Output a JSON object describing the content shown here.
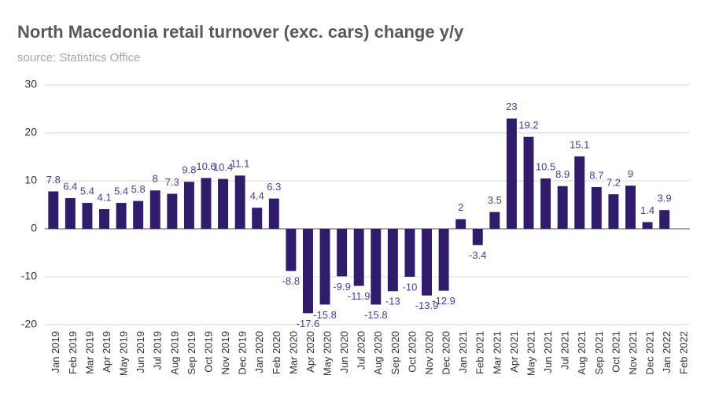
{
  "chart_data": {
    "type": "bar",
    "title": "North Macedonia retail turnover (exc. cars) change y/y",
    "subtitle": "source: Statistics Office",
    "categories": [
      "Jan 2019",
      "Feb 2019",
      "Mar 2019",
      "Apr 2019",
      "May 2019",
      "Jun 2019",
      "Jul 2019",
      "Aug 2019",
      "Sep 2019",
      "Oct 2019",
      "Nov 2019",
      "Dec 2019",
      "Jan 2020",
      "Feb 2020",
      "Mar 2020",
      "Apr 2020",
      "May 2020",
      "Jun 2020",
      "Jul 2020",
      "Aug 2020",
      "Sep 2020",
      "Oct 2020",
      "Nov 2020",
      "Dec 2020",
      "Jan 2021",
      "Feb 2021",
      "Mar 2021",
      "Apr 2021",
      "May 2021",
      "Jun 2021",
      "Jul 2021",
      "Aug 2021",
      "Sep 2021",
      "Oct 2021",
      "Nov 2021",
      "Dec 2021",
      "Jan 2022",
      "Feb 2022"
    ],
    "values": [
      7.8,
      6.4,
      5.4,
      4.1,
      5.4,
      5.8,
      8,
      7.3,
      9.8,
      10.6,
      10.4,
      11.1,
      4.4,
      6.3,
      -8.8,
      -17.6,
      -15.8,
      -9.9,
      -11.9,
      -15.8,
      -13,
      -10,
      -13.9,
      -12.9,
      2,
      -3.4,
      3.5,
      23,
      19.2,
      10.5,
      8.9,
      15.1,
      8.7,
      7.2,
      9,
      1.4,
      3.9,
      null
    ],
    "color": "#311b6b",
    "ylim": [
      -20,
      30
    ],
    "yticks": [
      -20,
      -10,
      0,
      10,
      20,
      30
    ],
    "grid": true
  }
}
